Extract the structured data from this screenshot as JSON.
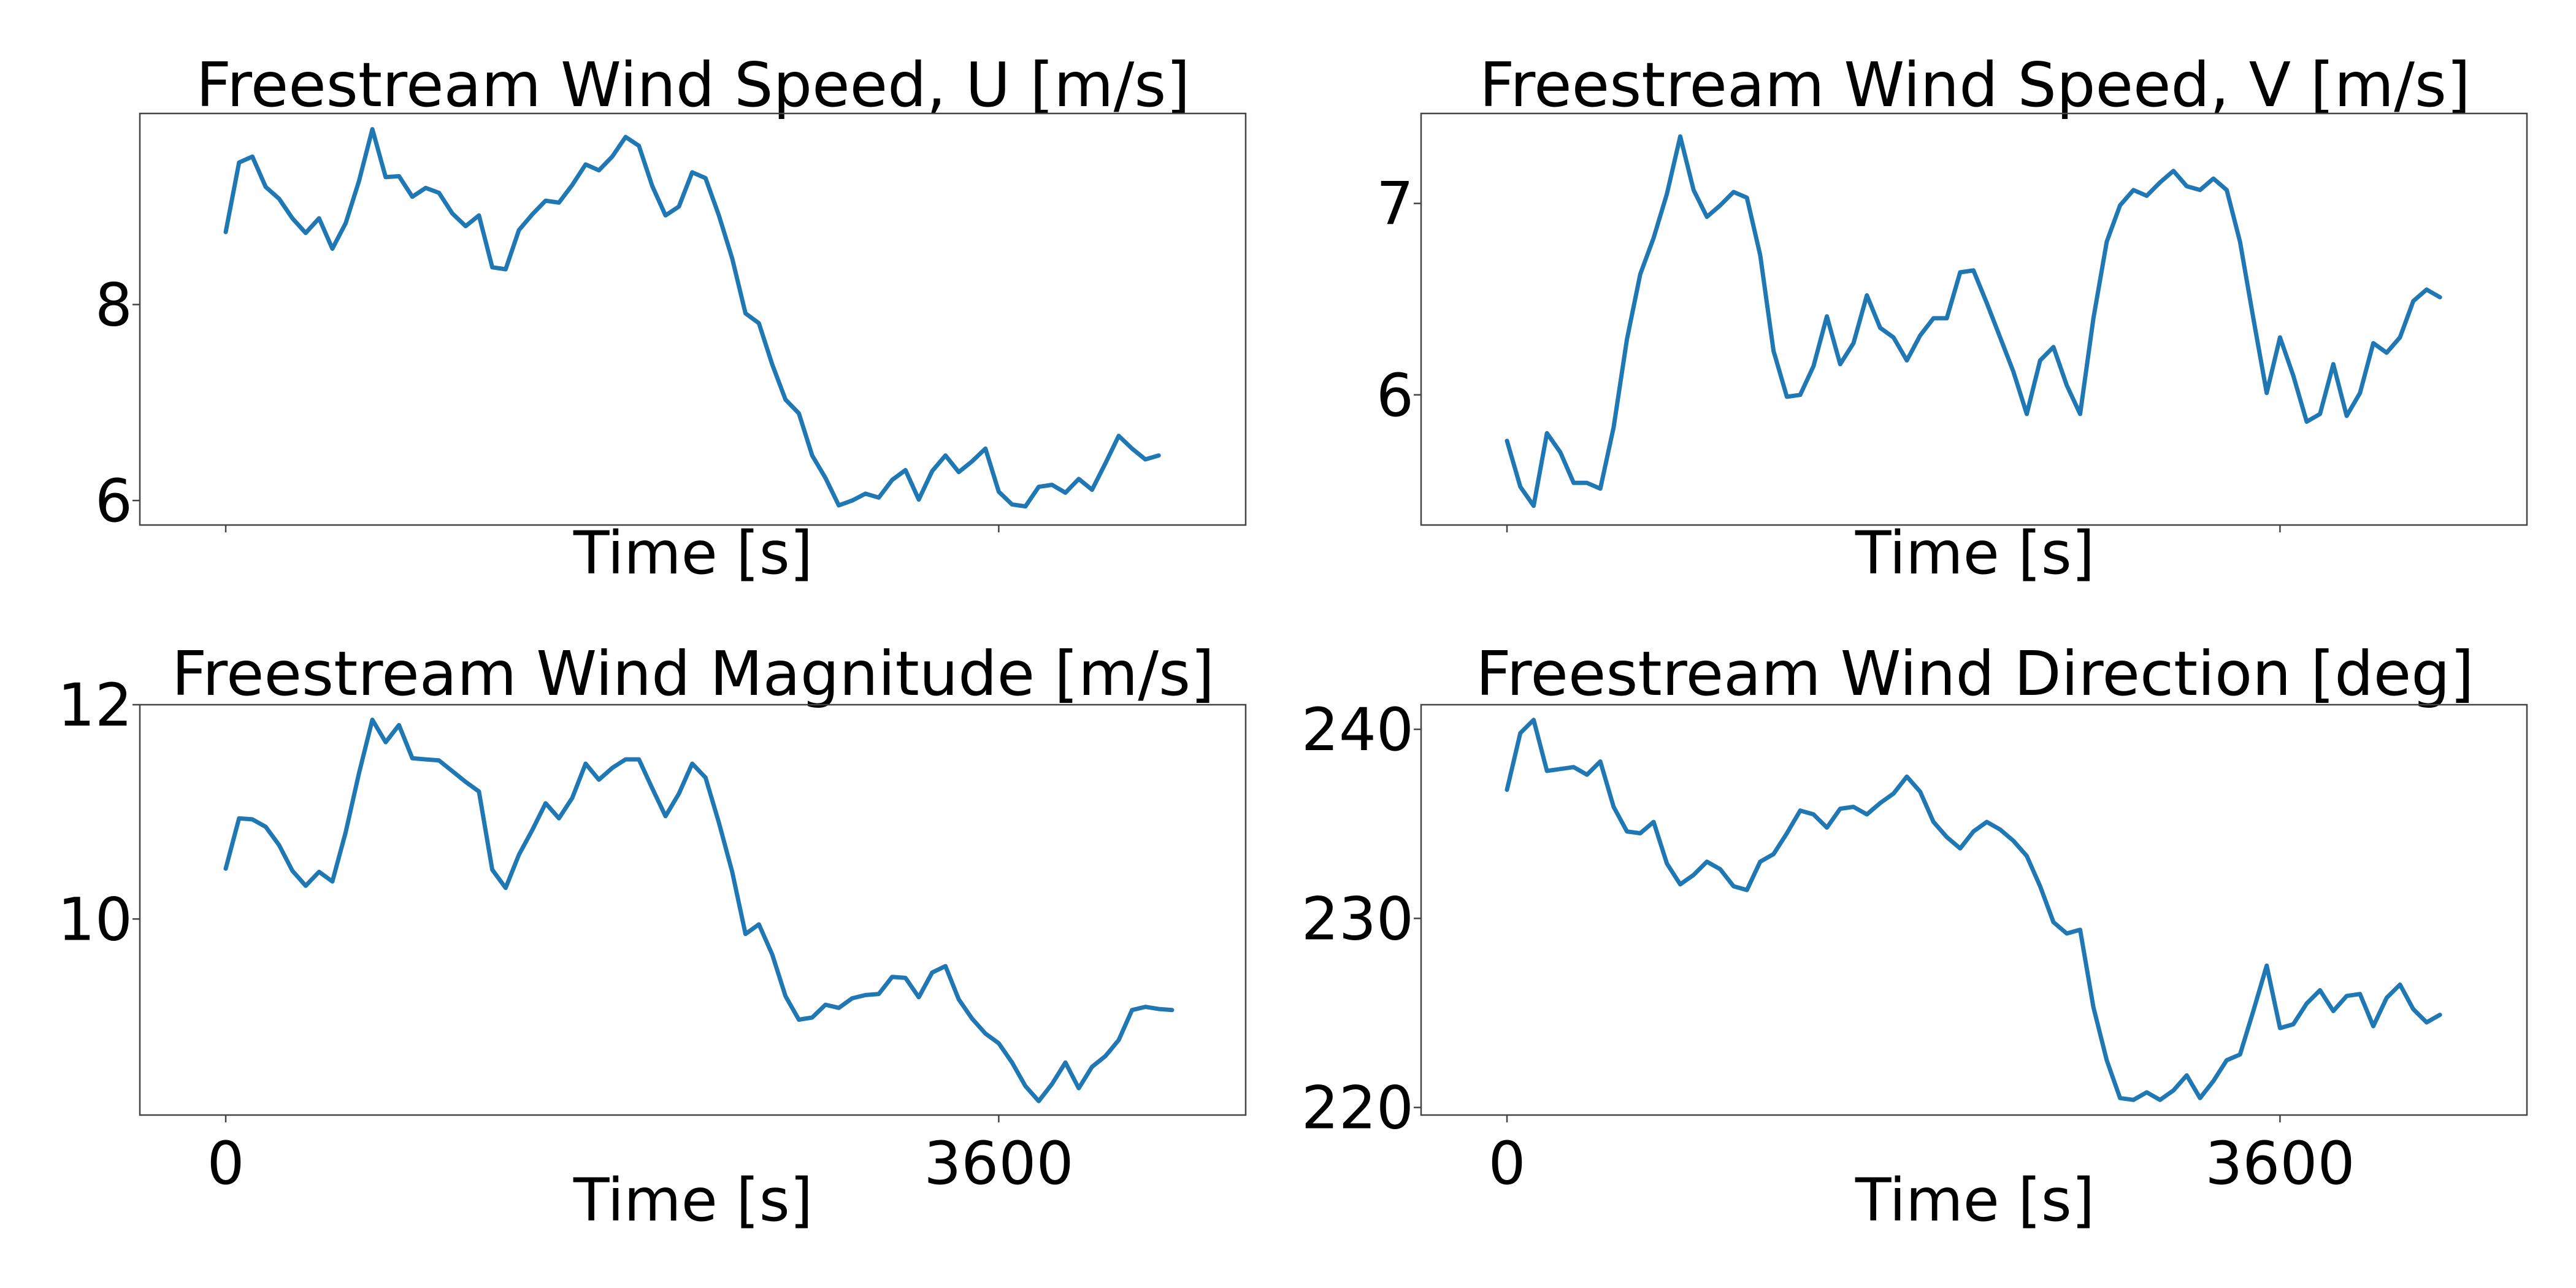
{
  "chart_data": [
    {
      "type": "line",
      "title": "Freestream Wind Speed, U [m/s]",
      "xlabel": "Time [s]",
      "ylabel": "",
      "xlim": [
        -400,
        4750
      ],
      "ylim": [
        5.75,
        9.95
      ],
      "xticks": [
        0,
        3600
      ],
      "show_xtick_labels": false,
      "yticks": [
        6,
        8
      ],
      "line_color": "#1f77b4",
      "x_start": 0,
      "x_step": 62.07,
      "values": [
        8.74,
        9.45,
        9.51,
        9.2,
        9.08,
        8.88,
        8.73,
        8.88,
        8.57,
        8.83,
        9.26,
        9.79,
        9.3,
        9.31,
        9.1,
        9.19,
        9.14,
        8.93,
        8.8,
        8.91,
        8.38,
        8.36,
        8.76,
        8.92,
        9.06,
        9.04,
        9.22,
        9.43,
        9.37,
        9.51,
        9.71,
        9.62,
        9.21,
        8.91,
        9.0,
        9.35,
        9.29,
        8.91,
        8.47,
        7.91,
        7.81,
        7.39,
        7.03,
        6.89,
        6.46,
        6.23,
        5.95,
        6.0,
        6.07,
        6.03,
        6.21,
        6.31,
        6.01,
        6.3,
        6.46,
        6.29,
        6.4,
        6.53,
        6.09,
        5.96,
        5.94,
        6.14,
        6.16,
        6.08,
        6.22,
        6.11,
        6.38,
        6.66,
        6.53,
        6.42,
        6.46
      ]
    },
    {
      "type": "line",
      "title": "Freestream Wind Speed, V [m/s]",
      "xlabel": "Time [s]",
      "ylabel": "",
      "xlim": [
        -400,
        4750
      ],
      "ylim": [
        5.32,
        7.47
      ],
      "xticks": [
        0,
        3600
      ],
      "show_xtick_labels": false,
      "yticks": [
        6,
        7
      ],
      "line_color": "#1f77b4",
      "x_start": 0,
      "x_step": 62.07,
      "values": [
        5.76,
        5.52,
        5.42,
        5.8,
        5.7,
        5.54,
        5.54,
        5.51,
        5.83,
        6.29,
        6.63,
        6.82,
        7.05,
        7.35,
        7.07,
        6.93,
        6.99,
        7.06,
        7.03,
        6.73,
        6.23,
        5.99,
        6.0,
        6.15,
        6.41,
        6.16,
        6.27,
        6.52,
        6.35,
        6.3,
        6.18,
        6.31,
        6.4,
        6.4,
        6.64,
        6.65,
        6.48,
        6.3,
        6.12,
        5.9,
        6.18,
        6.25,
        6.05,
        5.9,
        6.4,
        6.8,
        6.99,
        7.07,
        7.04,
        7.11,
        7.17,
        7.09,
        7.07,
        7.13,
        7.07,
        6.8,
        6.4,
        6.01,
        6.3,
        6.1,
        5.86,
        5.9,
        6.16,
        5.89,
        6.01,
        6.27,
        6.22,
        6.3,
        6.49,
        6.55,
        6.51
      ]
    },
    {
      "type": "line",
      "title": "Freestream Wind Magnitude [m/s]",
      "xlabel": "Time [s]",
      "ylabel": "",
      "xlim": [
        -400,
        4750
      ],
      "ylim": [
        8.17,
        12.0
      ],
      "xticks": [
        0,
        3600
      ],
      "show_xtick_labels": true,
      "yticks": [
        10,
        12
      ],
      "line_color": "#1f77b4",
      "x_start": 0,
      "x_step": 62.07,
      "values": [
        10.47,
        10.94,
        10.93,
        10.86,
        10.69,
        10.45,
        10.31,
        10.44,
        10.35,
        10.81,
        11.36,
        11.86,
        11.65,
        11.81,
        11.5,
        11.49,
        11.48,
        11.38,
        11.28,
        11.19,
        10.46,
        10.29,
        10.6,
        10.83,
        11.08,
        10.94,
        11.13,
        11.45,
        11.3,
        11.41,
        11.49,
        11.49,
        11.22,
        10.96,
        11.17,
        11.45,
        11.32,
        10.9,
        10.44,
        9.86,
        9.95,
        9.67,
        9.28,
        9.06,
        9.08,
        9.2,
        9.17,
        9.26,
        9.29,
        9.3,
        9.46,
        9.45,
        9.27,
        9.5,
        9.56,
        9.25,
        9.07,
        8.93,
        8.84,
        8.66,
        8.44,
        8.3,
        8.46,
        8.66,
        8.42,
        8.62,
        8.72,
        8.87,
        9.15,
        9.18,
        9.16,
        9.15
      ]
    },
    {
      "type": "line",
      "title": "Freestream Wind Direction [deg]",
      "xlabel": "Time [s]",
      "ylabel": "",
      "xlim": [
        -400,
        4750
      ],
      "ylim": [
        219.6,
        241.3
      ],
      "xticks": [
        0,
        3600
      ],
      "show_xtick_labels": true,
      "yticks": [
        220,
        230,
        240
      ],
      "line_color": "#1f77b4",
      "x_start": 0,
      "x_step": 62.07,
      "values": [
        236.8,
        239.8,
        240.5,
        237.8,
        237.9,
        238.0,
        237.6,
        238.3,
        235.9,
        234.6,
        234.5,
        235.1,
        232.9,
        231.8,
        232.3,
        233.0,
        232.6,
        231.7,
        231.5,
        233.0,
        233.4,
        234.5,
        235.7,
        235.5,
        234.8,
        235.8,
        235.9,
        235.5,
        236.1,
        236.6,
        237.5,
        236.7,
        235.1,
        234.3,
        233.7,
        234.6,
        235.1,
        234.7,
        234.1,
        233.3,
        231.7,
        229.8,
        229.2,
        229.4,
        225.3,
        222.5,
        220.5,
        220.4,
        220.8,
        220.4,
        220.9,
        221.7,
        220.5,
        221.4,
        222.5,
        222.8,
        225.1,
        227.5,
        224.2,
        224.4,
        225.5,
        226.2,
        225.1,
        225.9,
        226.0,
        224.3,
        225.8,
        226.5,
        225.2,
        224.5,
        224.9
      ]
    }
  ]
}
